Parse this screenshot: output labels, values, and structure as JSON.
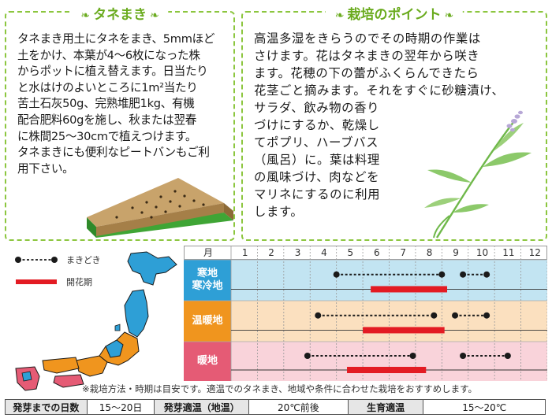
{
  "sowing": {
    "title": "タネまき",
    "lines": [
      "タネまき用土にタネをまき、5mmほど",
      "土をかけ、本葉が4～6枚になった株",
      "からポットに植え替えます。日当たり",
      "と水はけのよいところに1m²当たり",
      "苦土石灰50g、完熟堆肥1kg、有機",
      "配合肥料60gを施し、秋または翌春",
      "に株間25～30cmで植えつけます。",
      "タネまきにも便利なピートバンもご利",
      "用下さい。"
    ]
  },
  "points": {
    "title": "栽培のポイント",
    "lines_top": [
      "高温多湿をきらうのでその時期の作業は",
      "さけます。花はタネまきの翌年から咲き",
      "ます。花穂の下の蕾がふくらんできたら",
      "花茎ごと摘みます。それをすぐに砂糖漬け、"
    ],
    "lines_bottom": [
      "サラダ、飲み物の香り",
      "づけにするか、乾燥し",
      "てポプリ、ハーブバス",
      "（風呂）に。葉は料理",
      "の風味づけ、肉などを",
      "マリネにするのに利用",
      "します。"
    ]
  },
  "legend": {
    "sowing_label": "まきどき",
    "flowering_label": "開花期"
  },
  "colors": {
    "accent_green": "#8cc63f",
    "cold_band": "#c2e4f2",
    "cold_label": "#2e9fd6",
    "warm_band": "#fbe0bf",
    "warm_label": "#f0951e",
    "hot_band": "#f9d3da",
    "hot_label": "#e55b75",
    "flowering_bar": "#e31b23",
    "sowing_line": "#1a1a1a"
  },
  "chart_data": {
    "type": "table",
    "month_header": "月",
    "months": [
      "1",
      "2",
      "3",
      "4",
      "5",
      "6",
      "7",
      "8",
      "9",
      "10",
      "11",
      "12"
    ],
    "regions": [
      {
        "label": "寒地\n寒冷地",
        "label_lines": [
          "寒地",
          "寒冷地"
        ],
        "sowing": [
          [
            5.0,
            9.0
          ],
          [
            9.8,
            10.7
          ]
        ],
        "flowering": [
          [
            6.3,
            9.2
          ]
        ]
      },
      {
        "label": "温暖地",
        "label_lines": [
          "温暖地"
        ],
        "sowing": [
          [
            4.3,
            8.7
          ],
          [
            9.5,
            10.7
          ]
        ],
        "flowering": [
          [
            6.0,
            9.1
          ]
        ]
      },
      {
        "label": "暖地",
        "label_lines": [
          "暖地"
        ],
        "sowing": [
          [
            3.9,
            7.9
          ],
          [
            9.8,
            11.5
          ]
        ],
        "flowering": [
          [
            5.4,
            8.4
          ]
        ]
      }
    ]
  },
  "note": "※栽培方法・時期は目安です。適温でのタネまき、地域や条件に合わせた栽培をおすすめします。",
  "specs": [
    {
      "label": "発芽までの日数",
      "value": "15～20日"
    },
    {
      "label": "発芽適温（地温）",
      "value": "20℃前後"
    },
    {
      "label": "生育適温",
      "value": "15～20℃"
    }
  ]
}
